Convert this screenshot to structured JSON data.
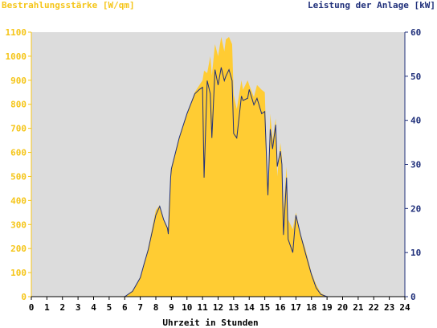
{
  "chart_data": {
    "type": "area",
    "left_axis_title": "Bestrahlungsstärke [W/qm]",
    "right_axis_title": "Leistung der Anlage [kW]",
    "xlabel": "Uhrzeit in Stunden",
    "xlim": [
      0,
      24
    ],
    "ylim_left": [
      0,
      1100
    ],
    "ylim_right": [
      0,
      60
    ],
    "x_ticks": [
      "0",
      "1",
      "2",
      "3",
      "4",
      "5",
      "6",
      "7",
      "8",
      "9",
      "10",
      "11",
      "12",
      "13",
      "14",
      "15",
      "16",
      "17",
      "18",
      "19",
      "20",
      "21",
      "22",
      "23",
      "24"
    ],
    "y_left_ticks": [
      "0",
      "100",
      "200",
      "300",
      "400",
      "500",
      "600",
      "700",
      "800",
      "900",
      "1000",
      "1100"
    ],
    "y_right_ticks": [
      "0",
      "10",
      "20",
      "30",
      "40",
      "50",
      "60"
    ],
    "grid": false,
    "colors": {
      "plot_background": "#dcdcdc",
      "irradiance_fill": "#ffcc33",
      "power_line": "#1f2f7a",
      "left_axis": "#f5c518",
      "right_axis": "#1f2f7a"
    },
    "series": [
      {
        "axis": "left",
        "style": "area",
        "x": [
          0,
          6.0,
          6.5,
          7.0,
          7.25,
          7.5,
          8.0,
          8.25,
          8.5,
          8.75,
          8.8,
          8.95,
          9.0,
          9.5,
          10.0,
          10.5,
          10.8,
          11.0,
          11.1,
          11.3,
          11.5,
          11.6,
          11.8,
          12.0,
          12.2,
          12.4,
          12.5,
          12.7,
          12.9,
          13.0,
          13.2,
          13.5,
          13.6,
          13.9,
          14.0,
          14.3,
          14.5,
          14.8,
          15.0,
          15.2,
          15.35,
          15.5,
          15.7,
          15.8,
          16.0,
          16.1,
          16.2,
          16.4,
          16.5,
          16.8,
          17.0,
          17.3,
          17.6,
          17.8,
          18.0,
          18.3,
          18.6,
          19.0,
          19.3,
          24
        ],
        "values": [
          0,
          0,
          25,
          80,
          140,
          200,
          360,
          380,
          320,
          290,
          270,
          520,
          540,
          660,
          760,
          850,
          880,
          900,
          940,
          930,
          1000,
          920,
          1050,
          1000,
          1080,
          1020,
          1070,
          1080,
          1050,
          840,
          780,
          900,
          860,
          900,
          880,
          830,
          880,
          860,
          850,
          420,
          760,
          650,
          740,
          500,
          640,
          580,
          360,
          540,
          320,
          280,
          350,
          260,
          200,
          150,
          100,
          50,
          15,
          0,
          0,
          0
        ]
      },
      {
        "axis": "right",
        "style": "line",
        "x": [
          0,
          6.0,
          6.5,
          7.0,
          7.25,
          7.5,
          8.0,
          8.25,
          8.5,
          8.75,
          8.8,
          8.95,
          9.0,
          9.5,
          10.0,
          10.5,
          10.8,
          11.0,
          11.1,
          11.3,
          11.5,
          11.6,
          11.8,
          12.0,
          12.2,
          12.4,
          12.5,
          12.7,
          12.9,
          13.0,
          13.2,
          13.5,
          13.6,
          13.9,
          14.0,
          14.3,
          14.5,
          14.8,
          15.0,
          15.2,
          15.35,
          15.5,
          15.7,
          15.8,
          16.0,
          16.1,
          16.2,
          16.4,
          16.5,
          16.8,
          17.0,
          17.3,
          17.6,
          17.8,
          18.0,
          18.3,
          18.6,
          19.0,
          19.3,
          24
        ],
        "values": [
          0,
          0,
          1.2,
          4.3,
          7.5,
          10.5,
          18.5,
          20.5,
          17.5,
          15.5,
          14.2,
          27.0,
          29.0,
          36.0,
          41.5,
          46.0,
          47.0,
          47.5,
          27.0,
          49.0,
          46.0,
          36.0,
          51.5,
          48.0,
          52.0,
          49.0,
          50.0,
          51.5,
          49.0,
          37.0,
          36.0,
          45.5,
          44.5,
          45.0,
          47.0,
          43.5,
          45.0,
          41.5,
          42.0,
          23.0,
          38.0,
          33.5,
          39.0,
          29.5,
          33.0,
          30.0,
          14.0,
          27.0,
          13.0,
          10.0,
          18.5,
          14.0,
          10.0,
          7.5,
          5.0,
          2.0,
          0.5,
          0,
          0,
          0
        ]
      }
    ]
  }
}
